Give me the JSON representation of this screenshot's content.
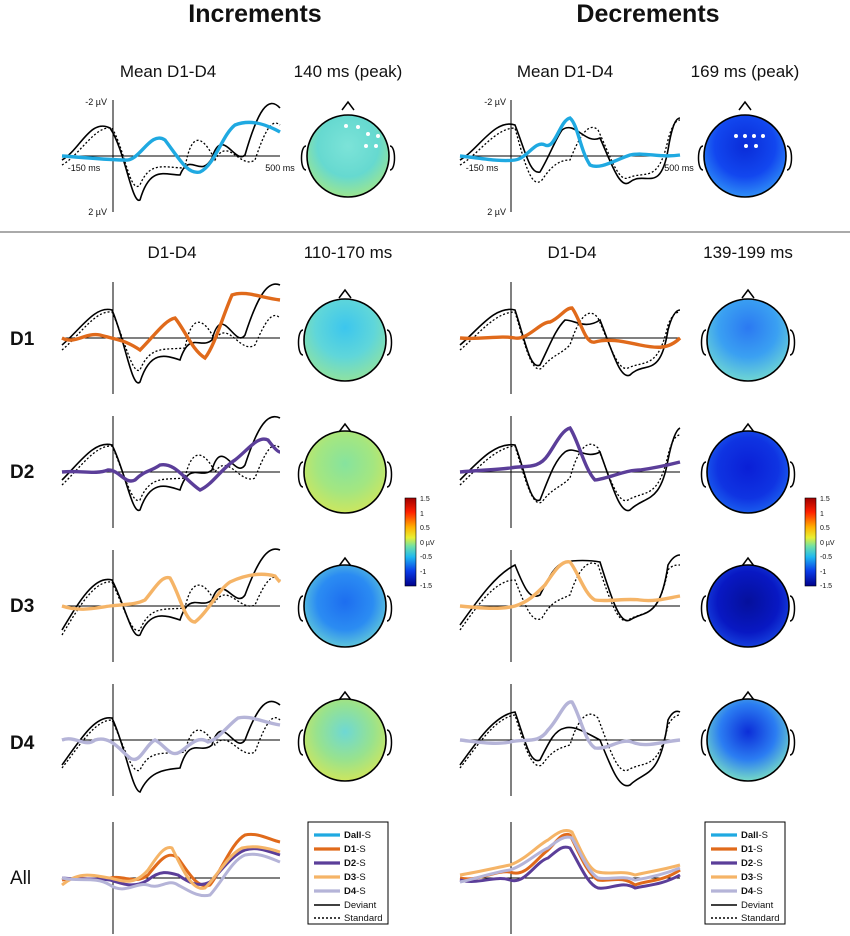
{
  "figure": {
    "titles": {
      "increments": "Increments",
      "decrements": "Decrements"
    },
    "top_headers": {
      "inc_wave": "Mean D1-D4",
      "inc_topo": "140 ms (peak)",
      "dec_wave": "Mean D1-D4",
      "dec_topo": "169 ms (peak)"
    },
    "mid_headers": {
      "inc_wave": "D1-D4",
      "inc_topo": "110-170 ms",
      "dec_wave": "D1-D4",
      "dec_topo": "139-199 ms"
    },
    "row_labels": [
      "D1",
      "D2",
      "D3",
      "D4",
      "All"
    ],
    "axis": {
      "y_top": "-2 µV",
      "y_bottom": "2 µV",
      "x_left": "-150 ms",
      "x_right": "500 ms"
    },
    "colorbar": {
      "ticks": [
        "1.5",
        "1",
        "0.5",
        "0 µV",
        "-0.5",
        "-1",
        "-1.5"
      ]
    },
    "legend": {
      "items": [
        {
          "bold": "Dall",
          "rest": "-S"
        },
        {
          "bold": "D1",
          "rest": "-S"
        },
        {
          "bold": "D2",
          "rest": "-S"
        },
        {
          "bold": "D3",
          "rest": "-S"
        },
        {
          "bold": "D4",
          "rest": "-S"
        },
        {
          "bold": "",
          "rest": "Deviant"
        },
        {
          "bold": "",
          "rest": "Standard"
        }
      ]
    }
  },
  "colors": {
    "dall": "#1fa9e1",
    "d1": "#e06a1b",
    "d2": "#5b3e99",
    "d3": "#f5b467",
    "d4": "#b5b4d8",
    "deviant": "#000000",
    "standard": "#000000"
  }
}
